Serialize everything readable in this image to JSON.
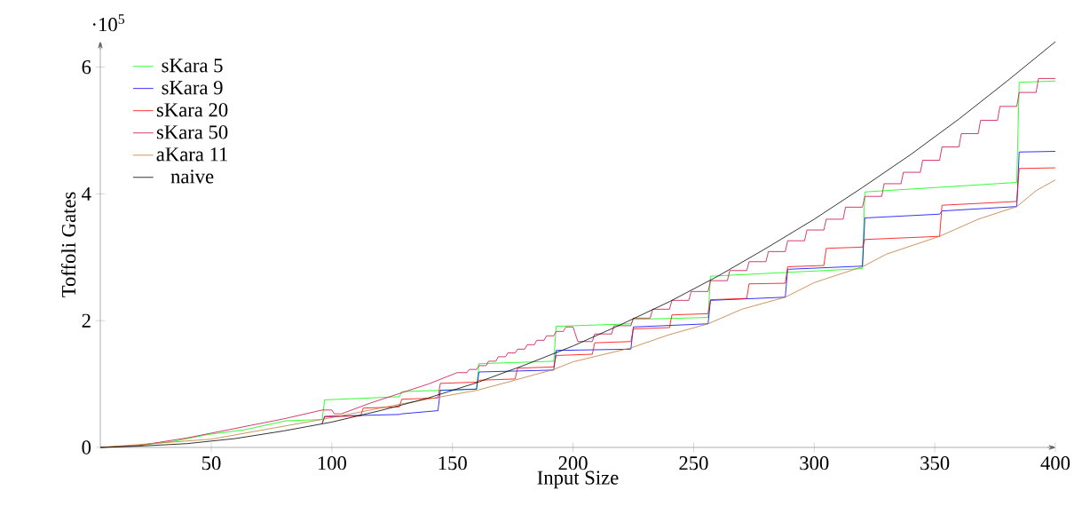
{
  "chart_data": {
    "type": "line",
    "xlabel": "Input Size",
    "ylabel": "Toffoli Gates",
    "annotations": [
      "·10$^{5}$"
    ],
    "xlim": [
      4,
      400
    ],
    "ylim": [
      0,
      6.4
    ],
    "xticks": [
      50,
      100,
      150,
      200,
      250,
      300,
      350,
      400
    ],
    "yticks": [
      0,
      2,
      4,
      6
    ],
    "grid": false,
    "legend": "top left",
    "marker": "none",
    "line_style": "solid",
    "series": [
      {
        "name": "sKara 5",
        "color": "#00ff00",
        "x": [
          4,
          20,
          35,
          48,
          64,
          81,
          96,
          97,
          128,
          129,
          160,
          161,
          192,
          193,
          224,
          225,
          256,
          257,
          288,
          320,
          321,
          384,
          385,
          400
        ],
        "values": [
          0,
          0.03,
          0.1,
          0.2,
          0.28,
          0.42,
          0.44,
          0.75,
          0.8,
          0.88,
          0.92,
          1.32,
          1.36,
          1.91,
          1.95,
          2.02,
          2.05,
          2.7,
          2.76,
          2.82,
          4.03,
          4.18,
          5.76,
          5.78
        ]
      },
      {
        "name": "sKara 9",
        "color": "#0000ff",
        "x": [
          96,
          97,
          128,
          129,
          144,
          145,
          160,
          161,
          192,
          193,
          224,
          225,
          256,
          257,
          288,
          289,
          320,
          321,
          352,
          353,
          384,
          385,
          400
        ],
        "values": [
          0.38,
          0.49,
          0.52,
          0.53,
          0.58,
          0.9,
          0.92,
          1.19,
          1.22,
          1.53,
          1.55,
          1.9,
          1.95,
          2.32,
          2.37,
          2.81,
          2.86,
          3.62,
          3.68,
          3.73,
          3.8,
          4.66,
          4.67
        ]
      },
      {
        "name": "sKara 20",
        "color": "#ff0000",
        "x": [
          96,
          97,
          112,
          113,
          128,
          129,
          144,
          145,
          160,
          161,
          176,
          177,
          192,
          193,
          208,
          209,
          224,
          225,
          240,
          241,
          256,
          257,
          272,
          273,
          288,
          289,
          304,
          305,
          320,
          321,
          352,
          353,
          384,
          385,
          400
        ],
        "values": [
          0.38,
          0.48,
          0.5,
          0.62,
          0.64,
          0.76,
          0.78,
          1.01,
          1.03,
          1.06,
          1.08,
          1.25,
          1.27,
          1.45,
          1.47,
          1.65,
          1.67,
          1.87,
          1.89,
          2.09,
          2.11,
          2.33,
          2.35,
          2.58,
          2.59,
          2.85,
          2.87,
          3.14,
          3.16,
          3.28,
          3.33,
          3.82,
          3.88,
          4.4,
          4.41
        ]
      },
      {
        "name": "sKara 50",
        "color": "#cc0a4c",
        "x": [
          4,
          20,
          40,
          60,
          80,
          96,
          100,
          101,
          104,
          116,
          128,
          140,
          152,
          156,
          157,
          160,
          161,
          164,
          165,
          168,
          169,
          172,
          173,
          176,
          177,
          180,
          181,
          184,
          185,
          188,
          189,
          192,
          193,
          196,
          197,
          200,
          202,
          208,
          209,
          216,
          217,
          224,
          225,
          232,
          233,
          240,
          241,
          248,
          249,
          256,
          257,
          264,
          265,
          272,
          273,
          280,
          281,
          288,
          289,
          296,
          297,
          304,
          305,
          312,
          313,
          320,
          321,
          328,
          329,
          336,
          337,
          344,
          345,
          352,
          353,
          360,
          361,
          368,
          369,
          376,
          377,
          384,
          385,
          392,
          393,
          400
        ],
        "values": [
          0,
          0.03,
          0.15,
          0.3,
          0.45,
          0.59,
          0.59,
          0.53,
          0.53,
          0.7,
          0.85,
          1.0,
          1.18,
          1.18,
          1.23,
          1.23,
          1.29,
          1.29,
          1.36,
          1.36,
          1.43,
          1.43,
          1.49,
          1.49,
          1.55,
          1.55,
          1.62,
          1.62,
          1.69,
          1.69,
          1.76,
          1.76,
          1.83,
          1.83,
          1.9,
          1.9,
          1.67,
          1.67,
          1.79,
          1.79,
          1.92,
          1.92,
          2.04,
          2.04,
          2.18,
          2.18,
          2.32,
          2.32,
          2.46,
          2.46,
          2.63,
          2.63,
          2.79,
          2.79,
          2.93,
          2.93,
          3.09,
          3.09,
          3.26,
          3.26,
          3.43,
          3.43,
          3.6,
          3.6,
          3.79,
          3.79,
          3.96,
          3.96,
          4.16,
          4.16,
          4.34,
          4.34,
          4.53,
          4.53,
          4.74,
          4.74,
          4.95,
          4.95,
          5.16,
          5.16,
          5.38,
          5.38,
          5.6,
          5.6,
          5.82,
          5.82
        ]
      },
      {
        "name": "aKara 11",
        "color": "#c07838",
        "x": [
          4,
          50,
          100,
          128,
          160,
          170,
          192,
          200,
          224,
          240,
          256,
          270,
          288,
          300,
          320,
          330,
          352,
          368,
          384,
          392,
          400
        ],
        "values": [
          0,
          0.13,
          0.47,
          0.68,
          0.9,
          1.0,
          1.23,
          1.35,
          1.57,
          1.78,
          1.95,
          2.18,
          2.37,
          2.6,
          2.85,
          3.05,
          3.33,
          3.6,
          3.8,
          4.05,
          4.22
        ]
      },
      {
        "name": "naive",
        "color": "#000000",
        "x": [
          4,
          20,
          40,
          60,
          80,
          100,
          120,
          140,
          160,
          180,
          200,
          220,
          240,
          260,
          280,
          300,
          320,
          340,
          360,
          380,
          400
        ],
        "values": [
          0,
          0.02,
          0.06,
          0.14,
          0.26,
          0.4,
          0.58,
          0.78,
          1.02,
          1.3,
          1.6,
          1.94,
          2.3,
          2.7,
          3.14,
          3.6,
          4.1,
          4.62,
          5.18,
          5.78,
          6.4
        ]
      }
    ]
  }
}
